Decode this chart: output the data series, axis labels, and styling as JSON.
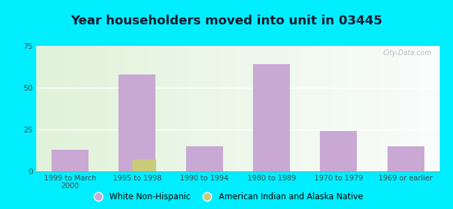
{
  "title": "Year householders moved into unit in 03445",
  "categories": [
    "1999 to March\n2000",
    "1995 to 1998",
    "1990 to 1994",
    "1980 to 1989",
    "1970 to 1979",
    "1969 or earlier"
  ],
  "white_non_hispanic": [
    13,
    58,
    15,
    64,
    24,
    15
  ],
  "american_indian": [
    0,
    7,
    0,
    0,
    0,
    0
  ],
  "bar_color_white": "#c9a8d4",
  "bar_color_indian": "#c8cc7a",
  "ylim": [
    0,
    75
  ],
  "yticks": [
    0,
    25,
    50,
    75
  ],
  "background_outer": "#00eeff",
  "title_fontsize": 13,
  "legend_labels": [
    "White Non-Hispanic",
    "American Indian and Alaska Native"
  ],
  "bar_width": 0.55,
  "indian_bar_width": 0.35
}
